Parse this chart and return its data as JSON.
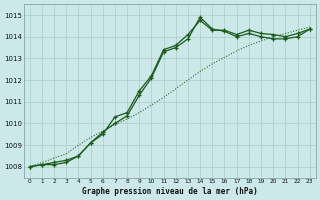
{
  "title": "Graphe pression niveau de la mer (hPa)",
  "bg_color": "#cce8e8",
  "grid_color": "#aacccc",
  "line_color": "#1a5c1a",
  "x_labels": [
    "0",
    "1",
    "2",
    "3",
    "4",
    "5",
    "6",
    "7",
    "8",
    "9",
    "10",
    "11",
    "12",
    "13",
    "14",
    "15",
    "16",
    "17",
    "18",
    "19",
    "20",
    "21",
    "22",
    "23"
  ],
  "ylim": [
    1007.5,
    1015.5
  ],
  "yticks": [
    1008,
    1009,
    1010,
    1011,
    1012,
    1013,
    1014,
    1015
  ],
  "series1": [
    1008.0,
    1008.1,
    1008.1,
    1008.2,
    1008.5,
    1009.1,
    1009.5,
    1010.3,
    1010.5,
    1011.5,
    1012.2,
    1013.4,
    1013.6,
    1014.1,
    1014.75,
    1014.3,
    1014.3,
    1014.1,
    1014.3,
    1014.15,
    1014.1,
    1014.0,
    1014.15,
    1014.35
  ],
  "series2": [
    1008.0,
    1008.1,
    1008.2,
    1008.3,
    1008.5,
    1009.1,
    1009.6,
    1010.0,
    1010.35,
    1011.3,
    1012.1,
    1013.3,
    1013.5,
    1013.9,
    1014.9,
    1014.35,
    1014.25,
    1014.0,
    1014.15,
    1014.0,
    1013.9,
    1013.9,
    1014.0,
    1014.35
  ],
  "series3_x": [
    0,
    3,
    4,
    5,
    6,
    7,
    8,
    9,
    10,
    11,
    12,
    13,
    14,
    15,
    16,
    17,
    18,
    19,
    20,
    21,
    22,
    23
  ],
  "series3_y": [
    1008.0,
    1008.6,
    1009.0,
    1009.35,
    1009.65,
    1009.95,
    1010.2,
    1010.5,
    1010.85,
    1011.2,
    1011.6,
    1012.0,
    1012.4,
    1012.75,
    1013.05,
    1013.35,
    1013.6,
    1013.8,
    1014.0,
    1014.15,
    1014.3,
    1014.45
  ]
}
